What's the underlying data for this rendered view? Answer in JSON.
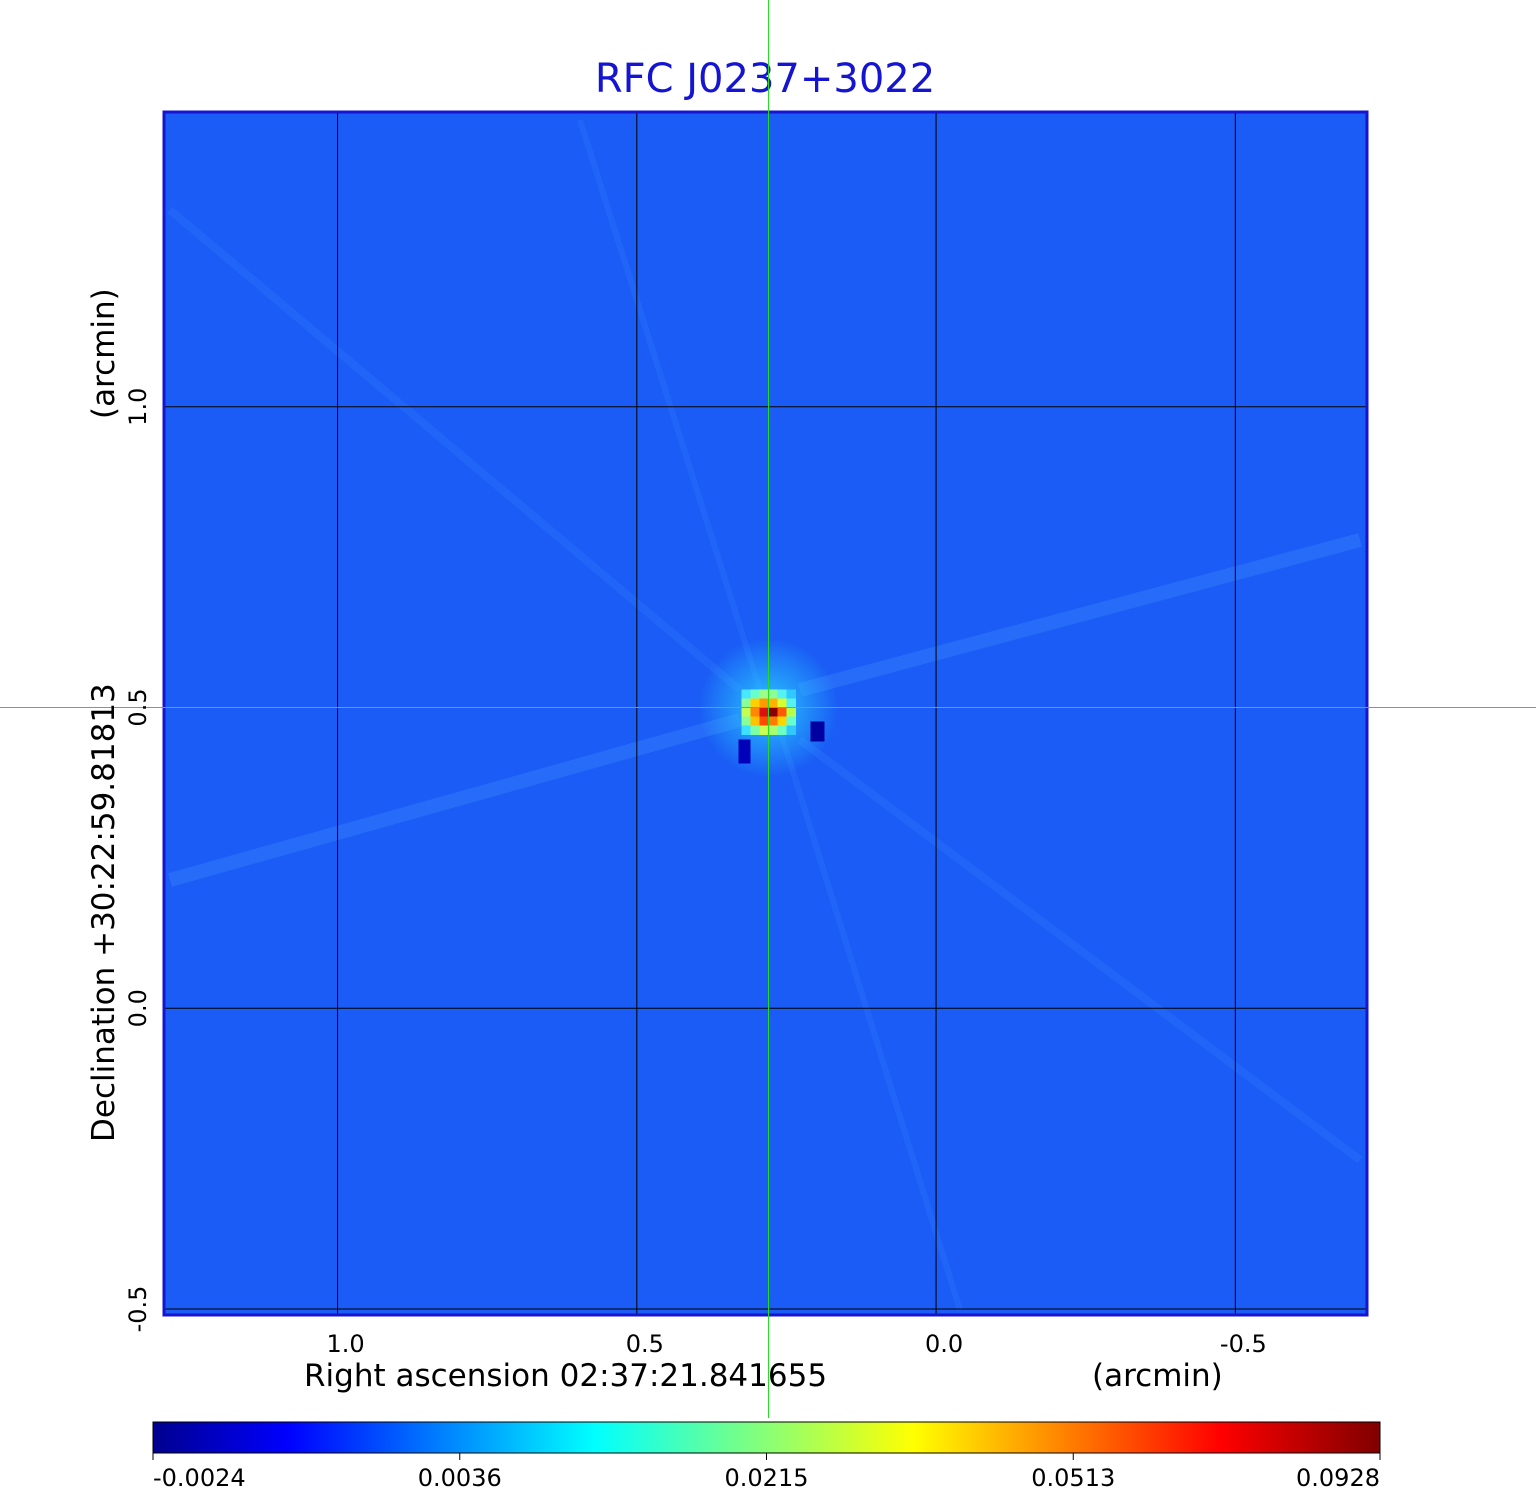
{
  "chart_data": {
    "type": "heatmap",
    "title": "RFC J0237+3022",
    "xlabel": "Right ascension  02:37:21.841655",
    "xlabel_unit": "(arcmin)",
    "ylabel": "Declination  +30:22:59.81813",
    "ylabel_unit": "(arcmin)",
    "x_ticks": [
      "1.0",
      "0.5",
      "0.0",
      "-0.5"
    ],
    "x_tick_values": [
      1.0,
      0.5,
      0.0,
      -0.5
    ],
    "y_ticks": [
      "1.0",
      "0.5",
      "0.0",
      "-0.5"
    ],
    "y_tick_values": [
      1.0,
      0.5,
      0.0,
      -0.5
    ],
    "xlim": [
      1.29,
      -0.72
    ],
    "ylim": [
      -0.51,
      1.49
    ],
    "x_reversed": true,
    "grid": true,
    "grid_color": "#000000",
    "crosshair": {
      "x": 0.28,
      "y": 0.5,
      "color": "#22dd22"
    },
    "source": {
      "x": 0.28,
      "y": 0.5,
      "peak": 0.0928
    },
    "background_color": "#1a5cf5",
    "colormap": "jet",
    "colorbar": {
      "ticks": [
        "-0.0024",
        "0.0036",
        "0.0215",
        "0.0513",
        "0.0928"
      ],
      "values": [
        -0.0024,
        0.0036,
        0.0215,
        0.0513,
        0.0928
      ],
      "range": [
        -0.0024,
        0.0928
      ]
    },
    "frame_color": "#1414d2"
  }
}
